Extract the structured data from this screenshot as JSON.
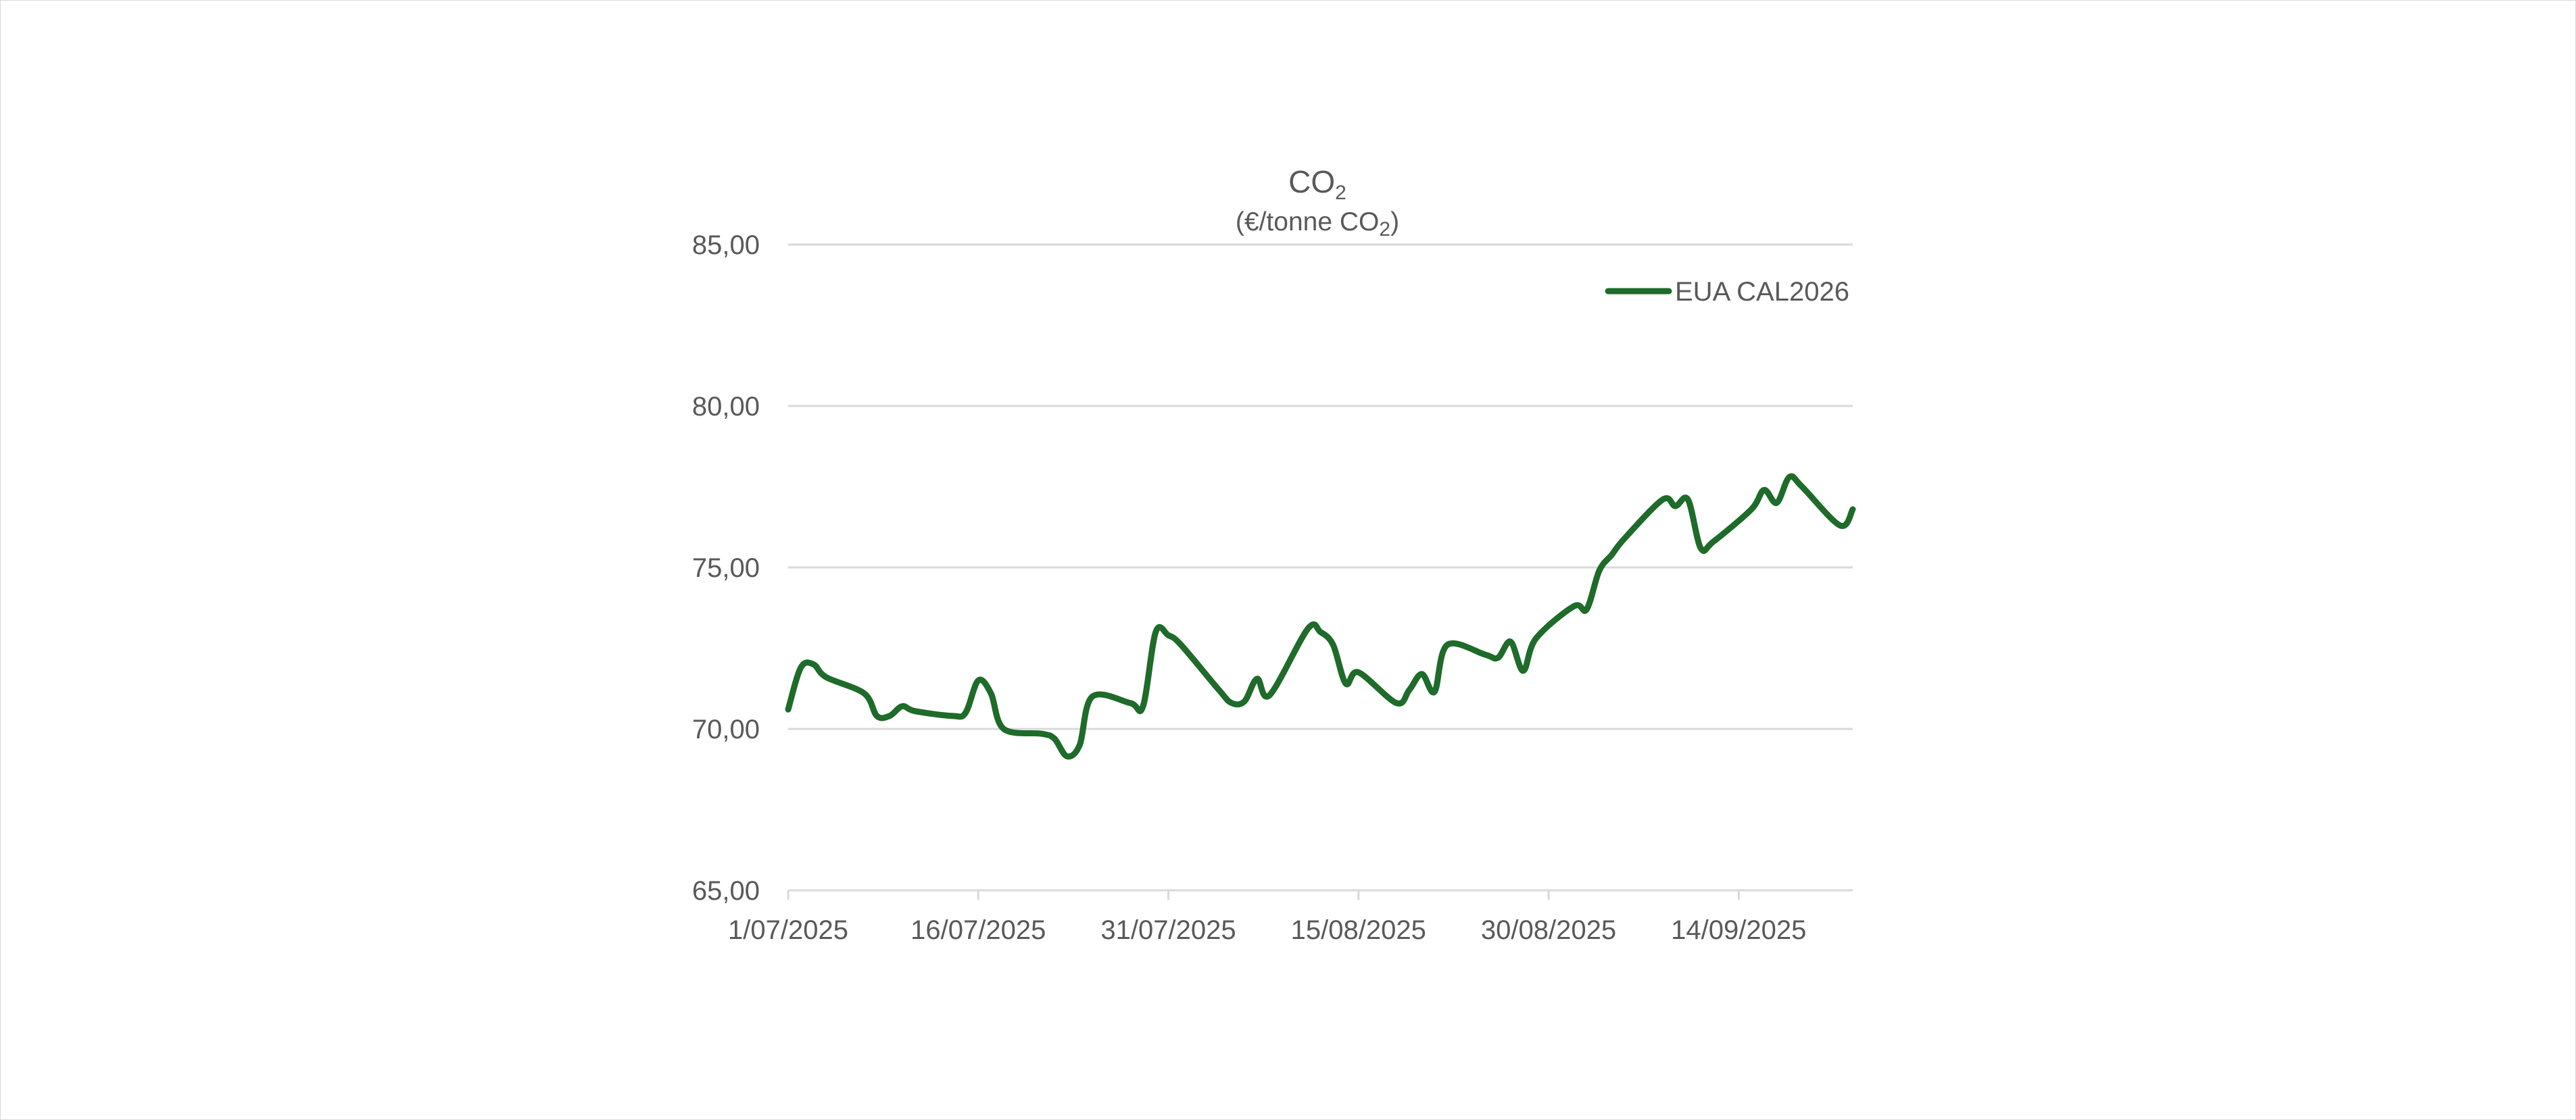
{
  "chart_data": {
    "type": "line",
    "title": "CO",
    "title_subscript": "2",
    "subtitle_prefix": "(€/tonne CO",
    "subtitle_subscript": "2",
    "subtitle_suffix": ")",
    "ylim": [
      65,
      85
    ],
    "yticks": [
      65,
      70,
      75,
      80,
      85
    ],
    "ytick_labels": [
      "65,00",
      "70,00",
      "75,00",
      "80,00",
      "85,00"
    ],
    "xlim": [
      "2025-07-01",
      "2025-09-23"
    ],
    "xticks": [
      "2025-07-01",
      "2025-07-16",
      "2025-07-31",
      "2025-08-15",
      "2025-08-30",
      "2025-09-14"
    ],
    "xtick_labels": [
      "1/07/2025",
      "16/07/2025",
      "31/07/2025",
      "15/08/2025",
      "30/08/2025",
      "14/09/2025"
    ],
    "grid": "horizontal",
    "legend_position": "top-right",
    "series": [
      {
        "name": "EUA CAL2026",
        "color": "#1e6b2a",
        "points": [
          [
            "2025-07-01",
            70.6
          ],
          [
            "2025-07-02",
            71.9
          ],
          [
            "2025-07-03",
            72.0
          ],
          [
            "2025-07-04",
            71.6
          ],
          [
            "2025-07-07",
            71.1
          ],
          [
            "2025-07-08",
            70.4
          ],
          [
            "2025-07-09",
            70.4
          ],
          [
            "2025-07-10",
            70.7
          ],
          [
            "2025-07-11",
            70.55
          ],
          [
            "2025-07-14",
            70.4
          ],
          [
            "2025-07-15",
            70.5
          ],
          [
            "2025-07-16",
            71.5
          ],
          [
            "2025-07-17",
            71.1
          ],
          [
            "2025-07-18",
            70.0
          ],
          [
            "2025-07-21",
            69.85
          ],
          [
            "2025-07-22",
            69.7
          ],
          [
            "2025-07-23",
            69.15
          ],
          [
            "2025-07-24",
            69.5
          ],
          [
            "2025-07-25",
            71.0
          ],
          [
            "2025-07-28",
            70.8
          ],
          [
            "2025-07-29",
            70.7
          ],
          [
            "2025-07-30",
            73.0
          ],
          [
            "2025-07-31",
            72.9
          ],
          [
            "2025-08-01",
            72.6
          ],
          [
            "2025-08-04",
            71.2
          ],
          [
            "2025-08-05",
            70.8
          ],
          [
            "2025-08-06",
            70.85
          ],
          [
            "2025-08-07",
            71.55
          ],
          [
            "2025-08-08",
            71.05
          ],
          [
            "2025-08-11",
            73.1
          ],
          [
            "2025-08-12",
            73.0
          ],
          [
            "2025-08-13",
            72.6
          ],
          [
            "2025-08-14",
            71.4
          ],
          [
            "2025-08-15",
            71.75
          ],
          [
            "2025-08-18",
            70.8
          ],
          [
            "2025-08-19",
            71.2
          ],
          [
            "2025-08-20",
            71.7
          ],
          [
            "2025-08-21",
            71.15
          ],
          [
            "2025-08-22",
            72.6
          ],
          [
            "2025-08-25",
            72.3
          ],
          [
            "2025-08-26",
            72.2
          ],
          [
            "2025-08-27",
            72.7
          ],
          [
            "2025-08-28",
            71.8
          ],
          [
            "2025-08-29",
            72.8
          ],
          [
            "2025-09-01",
            73.8
          ],
          [
            "2025-09-02",
            73.7
          ],
          [
            "2025-09-03",
            74.9
          ],
          [
            "2025-09-04",
            75.4
          ],
          [
            "2025-09-05",
            75.9
          ],
          [
            "2025-09-08",
            77.1
          ],
          [
            "2025-09-09",
            76.9
          ],
          [
            "2025-09-10",
            77.1
          ],
          [
            "2025-09-11",
            75.6
          ],
          [
            "2025-09-12",
            75.8
          ],
          [
            "2025-09-15",
            76.8
          ],
          [
            "2025-09-16",
            77.4
          ],
          [
            "2025-09-17",
            77.0
          ],
          [
            "2025-09-18",
            77.8
          ],
          [
            "2025-09-19",
            77.5
          ],
          [
            "2025-09-22",
            76.3
          ],
          [
            "2025-09-23",
            76.8
          ]
        ]
      }
    ]
  },
  "colors": {
    "line": "#1e6b2a",
    "gridline": "#d9d9d9",
    "text": "#595959"
  }
}
